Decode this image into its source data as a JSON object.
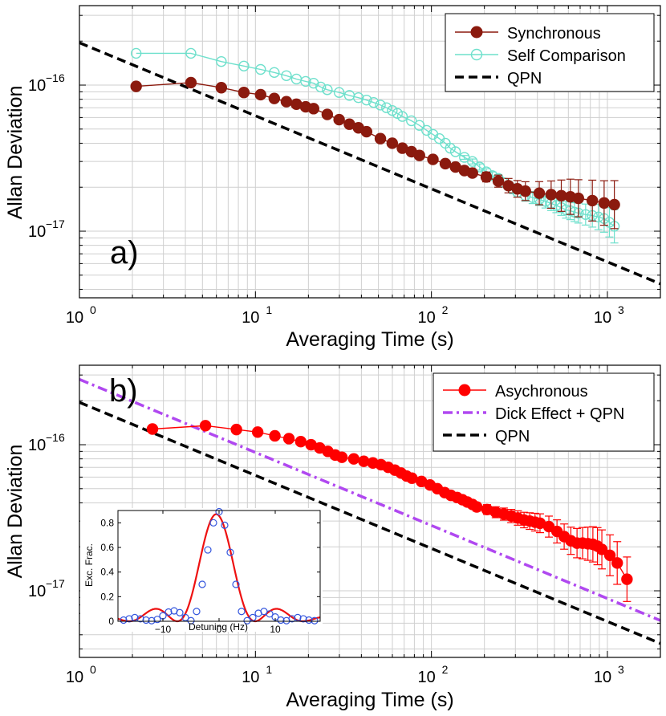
{
  "chart_data": [
    {
      "type": "line",
      "panel_label": "a)",
      "xlabel": "Averaging Time (s)",
      "ylabel": "Allan Deviation",
      "x_scale": "log",
      "y_scale": "log",
      "xlim": [
        1,
        2000
      ],
      "ylim": [
        3.5e-18,
        3.5e-16
      ],
      "grid": true,
      "legend_position": "top-right",
      "x_ticks": [
        {
          "value": 1,
          "label": "10^0"
        },
        {
          "value": 10,
          "label": "10^1"
        },
        {
          "value": 100,
          "label": "10^2"
        },
        {
          "value": 1000,
          "label": "10^3"
        }
      ],
      "y_ticks": [
        {
          "value": 1e-17,
          "label": "10^−17"
        },
        {
          "value": 1e-16,
          "label": "10^−16"
        }
      ],
      "series": [
        {
          "name": "Synchronous",
          "color": "#8b1a0e",
          "marker": "filled-circle",
          "x": [
            2.1,
            4.3,
            6.4,
            8.6,
            10.7,
            12.8,
            15,
            17.1,
            19.3,
            21.4,
            25.6,
            29.9,
            34.2,
            38.5,
            42.8,
            51.3,
            59.9,
            68.4,
            77,
            85.5,
            102,
            120,
            137,
            154,
            171,
            205,
            240,
            274,
            308,
            342,
            410,
            479,
            547,
            616,
            684,
            821,
            958,
            1095
          ],
          "y": [
            9.8e-17,
            1.04e-16,
            9.6e-17,
            8.9e-17,
            8.6e-17,
            8.1e-17,
            7.7e-17,
            7.4e-17,
            7.1e-17,
            6.9e-17,
            6.3e-17,
            5.8e-17,
            5.4e-17,
            5.1e-17,
            4.8e-17,
            4.3e-17,
            4e-17,
            3.7e-17,
            3.5e-17,
            3.3e-17,
            3.1e-17,
            2.9e-17,
            2.75e-17,
            2.6e-17,
            2.5e-17,
            2.35e-17,
            2.2e-17,
            2.05e-17,
            1.95e-17,
            1.88e-17,
            1.82e-17,
            1.78e-17,
            1.75e-17,
            1.72e-17,
            1.68e-17,
            1.62e-17,
            1.56e-17,
            1.52e-17
          ],
          "error": [
            0,
            0,
            0,
            0,
            0,
            0,
            0,
            0,
            0,
            0,
            0,
            0,
            0,
            0,
            0,
            0,
            0,
            0,
            0,
            0,
            0,
            0,
            0,
            0,
            0.05,
            0.08,
            0.1,
            0.12,
            0.14,
            0.16,
            0.2,
            0.24,
            0.28,
            0.32,
            0.34,
            0.38,
            0.42,
            0.46
          ]
        },
        {
          "name": "Self Comparison",
          "color": "#6ee0cc",
          "marker": "open-circle",
          "x": [
            2.1,
            4.3,
            6.4,
            8.6,
            10.7,
            12.8,
            15,
            17.1,
            19.3,
            21.4,
            23.5,
            25.6,
            29.9,
            34.2,
            38.5,
            42.8,
            47,
            51.3,
            55.6,
            59.9,
            64.1,
            68.4,
            77,
            85.5,
            94,
            102,
            111,
            120,
            128,
            137,
            154,
            171,
            188,
            205,
            222,
            240,
            257,
            274,
            291,
            308,
            342,
            376,
            410,
            445,
            479,
            513,
            547,
            582,
            616,
            650,
            684,
            752,
            821,
            889,
            958,
            1026,
            1095
          ],
          "y": [
            1.65e-16,
            1.65e-16,
            1.45e-16,
            1.35e-16,
            1.28e-16,
            1.22e-16,
            1.16e-16,
            1.1e-16,
            1.06e-16,
            1.03e-16,
            9.7e-17,
            9.3e-17,
            8.9e-17,
            8.5e-17,
            8.2e-17,
            7.9e-17,
            7.6e-17,
            7.3e-17,
            7e-17,
            6.7e-17,
            6.4e-17,
            6.1e-17,
            5.7e-17,
            5.3e-17,
            4.9e-17,
            4.6e-17,
            4.3e-17,
            4e-17,
            3.7e-17,
            3.5e-17,
            3.2e-17,
            3e-17,
            2.75e-17,
            2.55e-17,
            2.4e-17,
            2.3e-17,
            2.15e-17,
            2.05e-17,
            1.95e-17,
            1.85e-17,
            1.75e-17,
            1.7e-17,
            1.65e-17,
            1.6e-17,
            1.55e-17,
            1.5e-17,
            1.45e-17,
            1.4e-17,
            1.38e-17,
            1.35e-17,
            1.33e-17,
            1.3e-17,
            1.28e-17,
            1.25e-17,
            1.22e-17,
            1.15e-17,
            1.08e-17
          ],
          "error": [
            0,
            0,
            0,
            0,
            0,
            0,
            0,
            0,
            0,
            0,
            0,
            0,
            0,
            0,
            0,
            0,
            0,
            0,
            0,
            0,
            0,
            0,
            0,
            0,
            0,
            0,
            0,
            0,
            0,
            0,
            0.03,
            0.04,
            0.05,
            0.05,
            0.06,
            0.06,
            0.07,
            0.07,
            0.08,
            0.08,
            0.09,
            0.1,
            0.1,
            0.11,
            0.12,
            0.12,
            0.13,
            0.14,
            0.15,
            0.16,
            0.17,
            0.18,
            0.2,
            0.22,
            0.24,
            0.26,
            0.3
          ]
        },
        {
          "name": "QPN",
          "color": "#000000",
          "style": "dashed",
          "x": [
            1,
            2000
          ],
          "y": [
            1.95e-16,
            4.36e-18
          ]
        }
      ]
    },
    {
      "type": "line",
      "panel_label": "b)",
      "xlabel": "Averaging Time (s)",
      "ylabel": "Allan Deviation",
      "x_scale": "log",
      "y_scale": "log",
      "xlim": [
        1,
        2000
      ],
      "ylim": [
        3.5e-18,
        3.5e-16
      ],
      "grid": true,
      "legend_position": "top-right",
      "x_ticks": [
        {
          "value": 1,
          "label": "10^0"
        },
        {
          "value": 10,
          "label": "10^1"
        },
        {
          "value": 100,
          "label": "10^2"
        },
        {
          "value": 1000,
          "label": "10^3"
        }
      ],
      "y_ticks": [
        {
          "value": 1e-17,
          "label": "10^−17"
        },
        {
          "value": 1e-16,
          "label": "10^−16"
        }
      ],
      "series": [
        {
          "name": "Asychronous",
          "color": "#ff0000",
          "marker": "filled-circle",
          "x": [
            2.6,
            5.2,
            7.8,
            10.3,
            12.9,
            15.5,
            18.1,
            20.7,
            23.2,
            25.8,
            28.4,
            31,
            36.2,
            41.3,
            46.5,
            51.7,
            56.8,
            62,
            67.2,
            72.3,
            77.5,
            87.8,
            98.2,
            108,
            119,
            129,
            140,
            150,
            160,
            171,
            181,
            207,
            232,
            258,
            284,
            310,
            336,
            362,
            388,
            414,
            465,
            517,
            568,
            620,
            672,
            723,
            775,
            827,
            878,
            930,
            1033,
            1137,
            1292
          ],
          "y": [
            1.28e-16,
            1.35e-16,
            1.27e-16,
            1.22e-16,
            1.15e-16,
            1.1e-16,
            1.05e-16,
            1e-16,
            9.5e-17,
            9e-17,
            8.5e-17,
            8.2e-17,
            8e-17,
            7.7e-17,
            7.5e-17,
            7.3e-17,
            7e-17,
            6.7e-17,
            6.4e-17,
            6.1e-17,
            5.9e-17,
            5.6e-17,
            5.3e-17,
            5e-17,
            4.7e-17,
            4.5e-17,
            4.35e-17,
            4.2e-17,
            4.05e-17,
            3.9e-17,
            3.75e-17,
            3.6e-17,
            3.45e-17,
            3.35e-17,
            3.25e-17,
            3.15e-17,
            3.05e-17,
            3e-17,
            2.95e-17,
            2.9e-17,
            2.75e-17,
            2.55e-17,
            2.35e-17,
            2.2e-17,
            2.12e-17,
            2.12e-17,
            2.1e-17,
            2.08e-17,
            2.02e-17,
            1.92e-17,
            1.75e-17,
            1.55e-17,
            1.2e-17
          ],
          "error": [
            0,
            0,
            0,
            0,
            0,
            0,
            0,
            0,
            0,
            0,
            0,
            0,
            0,
            0,
            0,
            0,
            0,
            0,
            0,
            0,
            0,
            0,
            0,
            0,
            0.03,
            0.04,
            0.05,
            0.05,
            0.06,
            0.06,
            0.07,
            0.08,
            0.09,
            0.1,
            0.11,
            0.12,
            0.13,
            0.14,
            0.15,
            0.16,
            0.18,
            0.2,
            0.22,
            0.24,
            0.26,
            0.28,
            0.3,
            0.32,
            0.34,
            0.36,
            0.38,
            0.4,
            0.42
          ]
        },
        {
          "name": "Dick Effect + QPN",
          "color": "#b048f0",
          "style": "dash-dot",
          "x": [
            1,
            2000
          ],
          "y": [
            2.8e-16,
            6.26e-18
          ]
        },
        {
          "name": "QPN",
          "color": "#000000",
          "style": "dashed",
          "x": [
            1,
            2000
          ],
          "y": [
            1.95e-16,
            4.36e-18
          ]
        }
      ]
    },
    {
      "type": "line",
      "role": "inset",
      "xlabel": "Detuning (Hz)",
      "ylabel": "Exc. Frac.",
      "xlim": [
        -18,
        18
      ],
      "ylim": [
        0,
        0.9
      ],
      "x_ticks": [
        -10,
        0,
        10
      ],
      "y_ticks": [
        0,
        0.2,
        0.4,
        0.6,
        0.8
      ],
      "series": [
        {
          "name": "",
          "color": "#3355dd",
          "marker": "open-circle",
          "x": [
            -17,
            -16,
            -15,
            -14,
            -13,
            -12,
            -11,
            -10,
            -9,
            -8,
            -7,
            -6,
            -5,
            -4,
            -3,
            -2,
            -1,
            0,
            1,
            2,
            3,
            4,
            5,
            6,
            7,
            8,
            9,
            10,
            11,
            12,
            13,
            14,
            15,
            16,
            17
          ],
          "y": [
            0.01,
            0.02,
            0.03,
            0.02,
            0.01,
            0.005,
            0.015,
            0.045,
            0.075,
            0.085,
            0.07,
            0.03,
            0.005,
            0.08,
            0.3,
            0.58,
            0.8,
            0.89,
            0.78,
            0.56,
            0.3,
            0.08,
            0.005,
            0.03,
            0.065,
            0.08,
            0.06,
            0.035,
            0.01,
            0.005,
            0.02,
            0.03,
            0.02,
            0.01,
            0.005
          ]
        },
        {
          "name": "",
          "color": "#ee1111",
          "style": "solid",
          "fit": "rabi-lineshape",
          "center": 0,
          "peak": 0.87,
          "scale": 4.0
        }
      ]
    }
  ],
  "legend_a": [
    {
      "label": "Synchronous"
    },
    {
      "label": "Self Comparison"
    },
    {
      "label": "QPN"
    }
  ],
  "legend_b": [
    {
      "label": "Asychronous"
    },
    {
      "label": "Dick Effect + QPN"
    },
    {
      "label": "QPN"
    }
  ],
  "panel_a": {
    "label": "a)",
    "xlabel": "Averaging Time (s)",
    "ylabel": "Allan Deviation"
  },
  "panel_b": {
    "label": "b)",
    "xlabel": "Averaging Time (s)",
    "ylabel": "Allan Deviation"
  },
  "inset": {
    "xlabel": "Detuning (Hz)",
    "ylabel": "Exc. Frac."
  },
  "tick_labels": {
    "x_base": "10",
    "x_exps": [
      "0",
      "1",
      "2",
      "3"
    ],
    "y_base": "10",
    "y_exp_16": "−16",
    "y_exp_17": "−17"
  }
}
